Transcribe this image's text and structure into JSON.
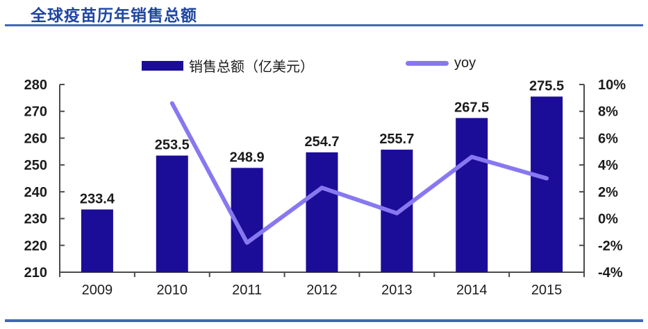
{
  "header": {
    "title": "全球疫苗历年销售总额"
  },
  "legend": {
    "items": [
      {
        "label": "销售总额（亿美元）",
        "swatch": "bar-swatch",
        "color": "#1B0D98"
      },
      {
        "label": "yoy",
        "swatch": "line-swatch",
        "color": "#8878F0"
      }
    ]
  },
  "chart_data": {
    "type": "bar",
    "title": "全球疫苗历年销售总额",
    "categories": [
      "2009",
      "2010",
      "2011",
      "2012",
      "2013",
      "2014",
      "2015"
    ],
    "series": [
      {
        "name": "销售总额（亿美元）",
        "type": "bar",
        "axis": "left",
        "color": "#1B0D98",
        "values": [
          233.4,
          253.5,
          248.9,
          254.7,
          255.7,
          267.5,
          275.5
        ],
        "labels": [
          "233.4",
          "253.5",
          "248.9",
          "254.7",
          "255.7",
          "267.5",
          "275.5"
        ]
      },
      {
        "name": "yoy",
        "type": "line",
        "axis": "right",
        "color": "#8878F0",
        "values": [
          null,
          8.6,
          -1.8,
          2.3,
          0.4,
          4.6,
          3.0
        ]
      }
    ],
    "left_axis": {
      "min": 210,
      "max": 280,
      "step": 10,
      "tick_labels": [
        "280",
        "270",
        "260",
        "250",
        "240",
        "230",
        "220",
        "210"
      ]
    },
    "right_axis": {
      "min": -4,
      "max": 10,
      "step": 2,
      "tick_labels": [
        "10%",
        "8%",
        "6%",
        "4%",
        "2%",
        "0%",
        "-2%",
        "-4%"
      ]
    },
    "legend_position": "top",
    "grid": false
  },
  "colors": {
    "title": "#1E45A0",
    "rule": "#4166B4",
    "axis": "#4a4a4a",
    "tick_text": "#1c1c1c",
    "bar_label_text": "#1a1a1a"
  }
}
